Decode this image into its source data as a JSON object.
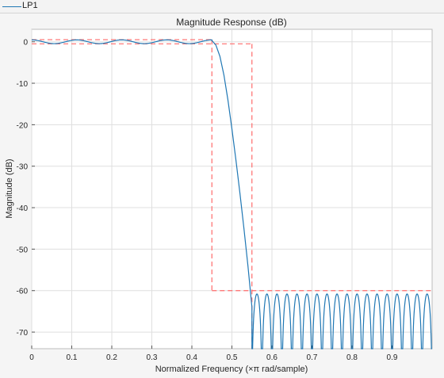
{
  "legend": {
    "label": "LP1",
    "line_color": "#1f77b4"
  },
  "chart_data": {
    "type": "line",
    "title": "Magnitude Response (dB)",
    "xlabel": "Normalized Frequency (×π rad/sample)",
    "ylabel": "Magnitude (dB)",
    "xlim": [
      0,
      1
    ],
    "ylim": [
      -74,
      3
    ],
    "grid": true,
    "x_ticks": [
      0,
      0.1,
      0.2,
      0.3,
      0.4,
      0.5,
      0.6,
      0.7,
      0.8,
      0.9
    ],
    "x_tick_labels": [
      "0",
      "0.1",
      "0.2",
      "0.3",
      "0.4",
      "0.5",
      "0.6",
      "0.7",
      "0.8",
      "0.9"
    ],
    "y_ticks": [
      0,
      -10,
      -20,
      -30,
      -40,
      -50,
      -60,
      -70
    ],
    "y_tick_labels": [
      "0",
      "-10",
      "-20",
      "-30",
      "-40",
      "-50",
      "-60",
      "-70"
    ],
    "series": [
      {
        "name": "LP1",
        "color": "#1f77b4",
        "passband_edge": 0.45,
        "passband_ripple_db": 0.5,
        "passband_ripple_count": 4,
        "stopband_start": 0.55,
        "stopband_peak_db": -60.8,
        "stopband_lobes": 18,
        "transition_x": [
          0.45,
          0.46,
          0.47,
          0.48,
          0.49,
          0.5,
          0.51,
          0.52,
          0.53,
          0.54,
          0.55
        ],
        "transition_y": [
          0.3,
          -0.8,
          -3.5,
          -8,
          -14,
          -21,
          -28.5,
          -36.5,
          -45,
          -54,
          -64
        ]
      }
    ],
    "mask": {
      "color": "#ff6b6b",
      "passband_upper": [
        [
          0,
          0.5
        ],
        [
          0.45,
          0.5
        ]
      ],
      "passband_lower": [
        [
          0,
          -0.5
        ],
        [
          0.55,
          -0.5
        ]
      ],
      "passband_vertical_upper": [
        [
          0.45,
          0.5
        ],
        [
          0.45,
          -60
        ]
      ],
      "passband_vertical_lower": [
        [
          0.55,
          -0.5
        ],
        [
          0.55,
          -74
        ]
      ],
      "stopband": [
        [
          0.45,
          -60
        ],
        [
          1,
          -60
        ]
      ]
    }
  }
}
